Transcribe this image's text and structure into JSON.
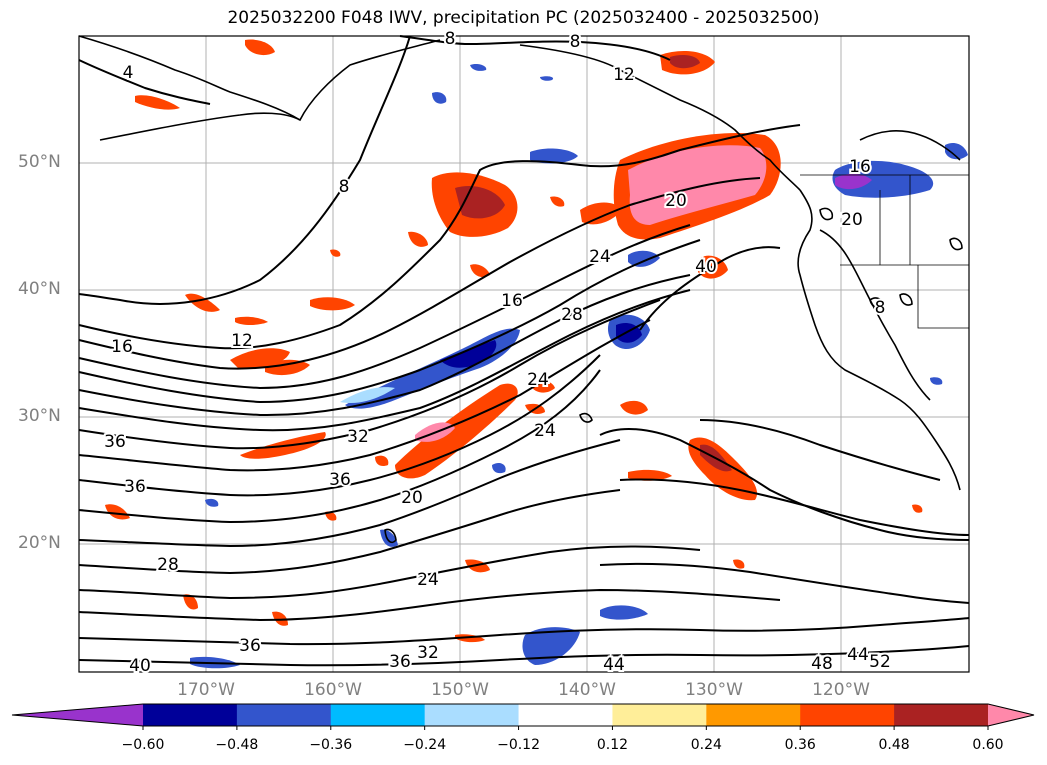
{
  "title": "2025032200 F048 IWV, precipitation PC (2025032400 - 2025032500)",
  "lat_labels": [
    "50°N",
    "40°N",
    "30°N",
    "20°N"
  ],
  "lon_labels": [
    "170°W",
    "160°W",
    "150°W",
    "140°W",
    "130°W",
    "120°W"
  ],
  "contour_labels": [
    "4",
    "8",
    "8",
    "12",
    "12",
    "16",
    "16",
    "16",
    "20",
    "20",
    "20",
    "24",
    "24",
    "24",
    "24",
    "28",
    "28",
    "32",
    "32",
    "36",
    "36",
    "36",
    "36",
    "36",
    "40",
    "40",
    "44",
    "44",
    "48",
    "52",
    "8",
    "8"
  ],
  "colorbar": {
    "ticks": [
      "−0.60",
      "−0.48",
      "−0.36",
      "−0.24",
      "−0.12",
      "0.12",
      "0.24",
      "0.36",
      "0.48",
      "0.60"
    ],
    "colors": [
      "#9933cc",
      "#000099",
      "#3355cc",
      "#00bbff",
      "#aaddff",
      "#ffffff",
      "#ffee99",
      "#ff9900",
      "#ff4400",
      "#aa2222",
      "#ff88aa"
    ]
  },
  "map_data": {
    "extent_lon": [
      -180,
      -110
    ],
    "extent_lat": [
      10,
      60
    ],
    "grid_lon": [
      -170,
      -160,
      -150,
      -140,
      -130,
      -120
    ],
    "grid_lat": [
      20,
      30,
      40,
      50
    ]
  }
}
